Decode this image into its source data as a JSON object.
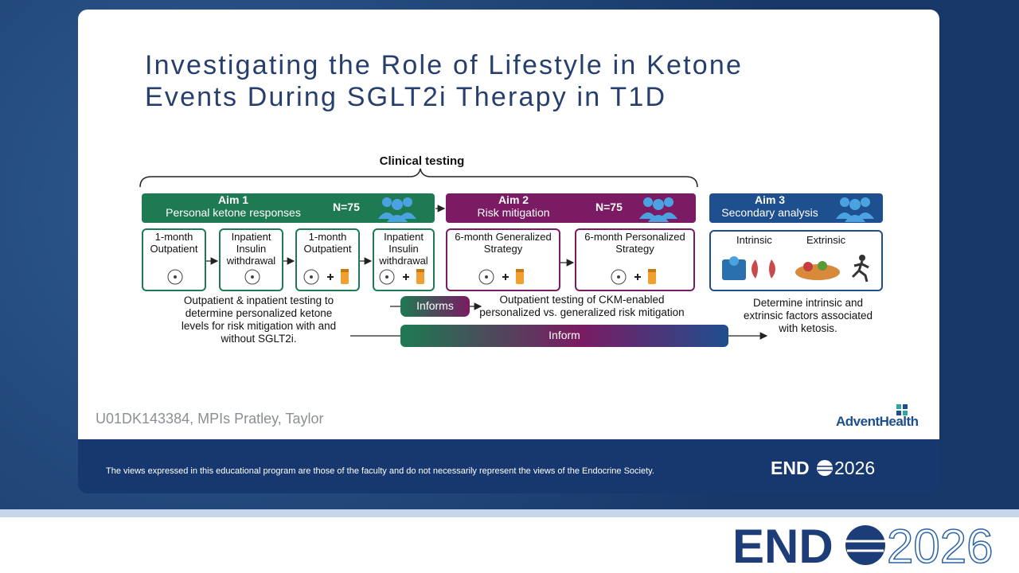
{
  "slide": {
    "title": [
      "Investigating the Role of Lifestyle in Ketone",
      "Events During SGLT2i Therapy in T1D"
    ],
    "grant": "U01DK143384, MPIs Pratley, Taylor",
    "brand": "AdventHealth"
  },
  "diagram": {
    "bracket_label": "Clinical testing",
    "aims": [
      {
        "label": "Aim 1",
        "subtitle": "Personal ketone responses",
        "n": "N=75",
        "steps": [
          [
            "1-month",
            "Outpatient"
          ],
          [
            "Inpatient",
            "Insulin",
            "withdrawal"
          ],
          [
            "1-month",
            "Outpatient"
          ],
          [
            "Inpatient",
            "Insulin",
            "withdrawal"
          ]
        ],
        "description": [
          "Outpatient & inpatient testing to",
          "determine personalized ketone",
          "levels for risk mitigation with and",
          "without SGLT2i."
        ]
      },
      {
        "label": "Aim 2",
        "subtitle": "Risk mitigation",
        "n": "N=75",
        "steps": [
          [
            "6-month Generalized",
            "Strategy"
          ],
          [
            "6-month Personalized",
            "Strategy"
          ]
        ],
        "description": [
          "Outpatient testing of CKM-enabled",
          "personalized vs. generalized risk mitigation"
        ]
      },
      {
        "label": "Aim 3",
        "subtitle": "Secondary analysis",
        "factors": [
          "Intrinsic",
          "Extrinsic"
        ],
        "description": [
          "Determine intrinsic and",
          "extrinsic factors associated",
          "with ketosis."
        ]
      }
    ],
    "informs": "Informs",
    "inform": "Inform"
  },
  "footer": {
    "disclaimer": "The views expressed in this educational program are those of the faculty and do not necessarily represent the views of the Endocrine Society.",
    "logo_name": "END",
    "logo_year": "2026"
  }
}
